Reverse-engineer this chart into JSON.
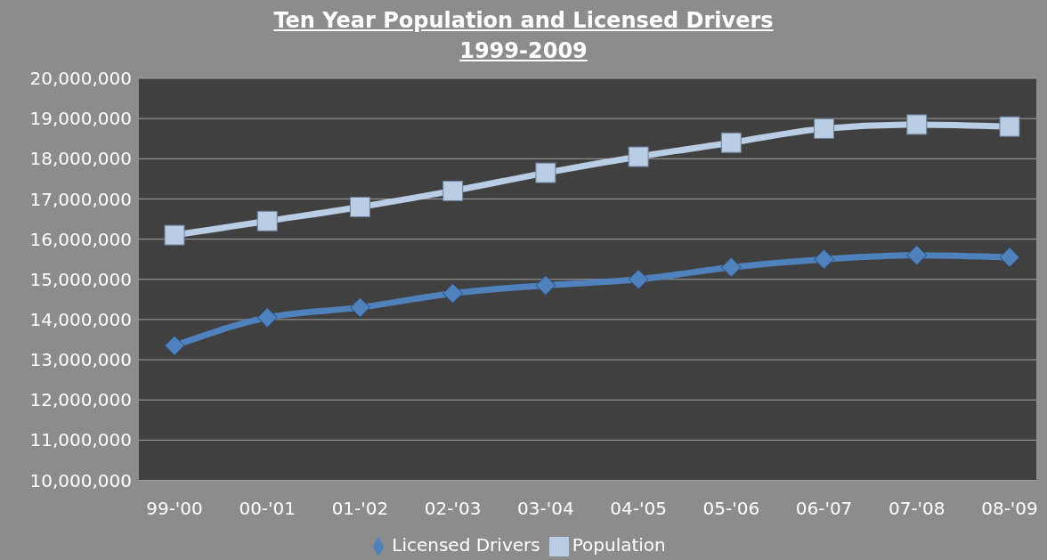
{
  "chart_data": {
    "type": "line",
    "title": "Ten Year Population and Licensed Drivers",
    "subtitle": "1999-2009",
    "categories": [
      "99-'00",
      "00-'01",
      "01-'02",
      "02-'03",
      "03-'04",
      "04-'05",
      "05-'06",
      "06-'07",
      "07-'08",
      "08-'09"
    ],
    "series": [
      {
        "name": "Licensed Drivers",
        "color": "#4f81bd",
        "marker": "diamond",
        "values": [
          13350000,
          14050000,
          14300000,
          14650000,
          14850000,
          15000000,
          15300000,
          15500000,
          15600000,
          15550000
        ]
      },
      {
        "name": "Population",
        "color": "#b9cde5",
        "marker": "square",
        "values": [
          16100000,
          16450000,
          16800000,
          17200000,
          17650000,
          18050000,
          18400000,
          18750000,
          18850000,
          18800000
        ]
      }
    ],
    "ylim": [
      10000000,
      20000000
    ],
    "yticks": [
      {
        "value": 10000000,
        "label": "10,000,000"
      },
      {
        "value": 11000000,
        "label": "11,000,000"
      },
      {
        "value": 12000000,
        "label": "12,000,000"
      },
      {
        "value": 13000000,
        "label": "13,000,000"
      },
      {
        "value": 14000000,
        "label": "14,000,000"
      },
      {
        "value": 15000000,
        "label": "15,000,000"
      },
      {
        "value": 16000000,
        "label": "16,000,000"
      },
      {
        "value": 17000000,
        "label": "17,000,000"
      },
      {
        "value": 18000000,
        "label": "18,000,000"
      },
      {
        "value": 19000000,
        "label": "19,000,000"
      },
      {
        "value": 20000000,
        "label": "20,000,000"
      }
    ],
    "grid": "y",
    "legend": "bottom"
  }
}
